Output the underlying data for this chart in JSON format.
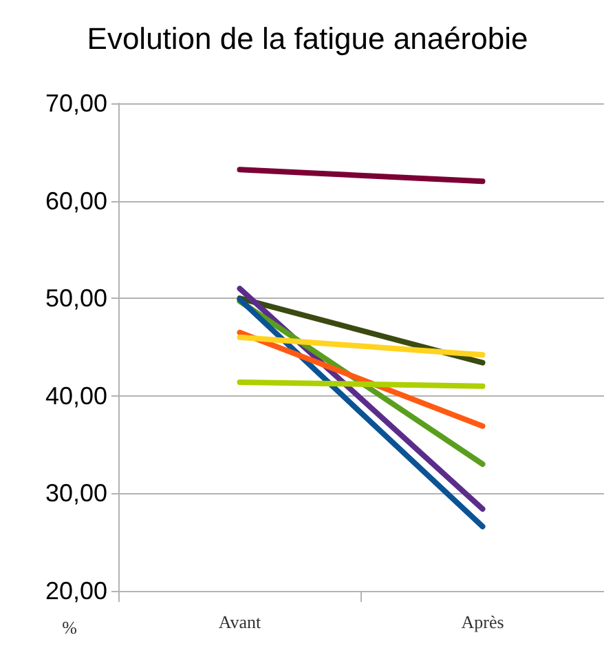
{
  "chart_data": {
    "type": "line",
    "title": "Evolution de la fatigue anaérobie",
    "ylabel": "%",
    "categories": [
      "Avant",
      "Après"
    ],
    "series": [
      {
        "color": "#7b0033",
        "values": [
          63.2,
          62.0
        ]
      },
      {
        "color": "#3a4a10",
        "values": [
          50.0,
          43.4
        ]
      },
      {
        "color": "#5b2d8a",
        "values": [
          51.0,
          28.4
        ]
      },
      {
        "color": "#5a9e1e",
        "values": [
          49.7,
          33.0
        ]
      },
      {
        "color": "#0b5394",
        "values": [
          49.9,
          26.6
        ]
      },
      {
        "color": "#ff5a14",
        "values": [
          46.5,
          36.9
        ]
      },
      {
        "color": "#ffd320",
        "values": [
          46.0,
          44.2
        ]
      },
      {
        "color": "#aecf00",
        "values": [
          41.4,
          41.0
        ]
      }
    ],
    "ylim": [
      20,
      70
    ],
    "yticks": [
      {
        "value": 20,
        "label": "20,00"
      },
      {
        "value": 30,
        "label": "30,00"
      },
      {
        "value": 40,
        "label": "40,00"
      },
      {
        "value": 50,
        "label": "50,00"
      },
      {
        "value": 60,
        "label": "60,00"
      },
      {
        "value": 70,
        "label": "70,00"
      }
    ],
    "grid": "y",
    "marker": "none",
    "line_style": "solid"
  }
}
